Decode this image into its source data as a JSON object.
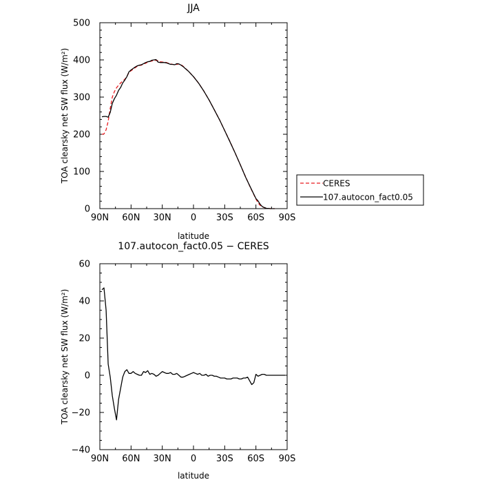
{
  "chart_data": [
    {
      "type": "line",
      "title": "JJA",
      "xlabel": "latitude",
      "ylabel": "TOA clearsky net SW flux (W/m²)",
      "xlim": [
        90,
        -90
      ],
      "ylim": [
        0,
        500
      ],
      "xticks": [
        90,
        60,
        30,
        0,
        -30,
        -60,
        -90
      ],
      "xtick_labels": [
        "90N",
        "60N",
        "30N",
        "0",
        "30S",
        "60S",
        "90S"
      ],
      "yticks": [
        0,
        100,
        200,
        300,
        400,
        500
      ],
      "ytick_labels": [
        "0",
        "100",
        "200",
        "300",
        "400",
        "500"
      ],
      "legend_position": "right",
      "series": [
        {
          "name": "CERES",
          "color": "#e8191d",
          "style": "dashed",
          "x": [
            88,
            86,
            84,
            82,
            80,
            78,
            76,
            74,
            72,
            70,
            68,
            66,
            64,
            62,
            60,
            58,
            56,
            54,
            52,
            50,
            48,
            46,
            44,
            42,
            40,
            38,
            36,
            34,
            32,
            30,
            28,
            26,
            24,
            22,
            20,
            18,
            16,
            14,
            12,
            10,
            8,
            5,
            0,
            -5,
            -10,
            -15,
            -20,
            -25,
            -30,
            -35,
            -40,
            -45,
            -50,
            -55,
            -60,
            -62,
            -64,
            -66,
            -68,
            -70,
            -72,
            -74,
            -76,
            -78
          ],
          "y": [
            200,
            201,
            212,
            235,
            270,
            300,
            315,
            325,
            332,
            338,
            343,
            348,
            356,
            366,
            371,
            375,
            379,
            383,
            385,
            386,
            389,
            391,
            394,
            396,
            397,
            398,
            399,
            398,
            395,
            394,
            394,
            393,
            391,
            389,
            388,
            387,
            388,
            389,
            387,
            383,
            378,
            370,
            355,
            337,
            316,
            292,
            266,
            239,
            210,
            181,
            150,
            118,
            86,
            55,
            26,
            16,
            9,
            5,
            3,
            1,
            0.5,
            0,
            0,
            0
          ]
        },
        {
          "name": "107.autocon_fact0.05",
          "color": "#000000",
          "style": "solid",
          "x": [
            88,
            86,
            84,
            82,
            80,
            78,
            76,
            74,
            72,
            70,
            68,
            66,
            64,
            62,
            60,
            58,
            56,
            54,
            52,
            50,
            48,
            46,
            44,
            42,
            40,
            38,
            36,
            34,
            32,
            30,
            28,
            26,
            24,
            22,
            20,
            18,
            16,
            14,
            12,
            10,
            8,
            5,
            0,
            -5,
            -10,
            -15,
            -20,
            -25,
            -30,
            -35,
            -40,
            -45,
            -50,
            -55,
            -60,
            -62,
            -64,
            -66,
            -68,
            -70,
            -72,
            -74,
            -76,
            -78
          ],
          "y": [
            247,
            248,
            248,
            246,
            259,
            283,
            296,
            305,
            318,
            326,
            338,
            346,
            355,
            368,
            373,
            377,
            381,
            384,
            386,
            387,
            390,
            393,
            395,
            396,
            399,
            400,
            401,
            394,
            393,
            393,
            393,
            392,
            390,
            388,
            388,
            387,
            390,
            389,
            386,
            382,
            377,
            370,
            355,
            337,
            316,
            292,
            266,
            239,
            210,
            180,
            150,
            118,
            85,
            56,
            27,
            21,
            12,
            6,
            3,
            1,
            0.5,
            0,
            0,
            0
          ]
        }
      ]
    },
    {
      "type": "line",
      "title": "107.autocon_fact0.05 − CERES",
      "xlabel": "latitude",
      "ylabel": "TOA clearsky net SW flux (W/m²)",
      "xlim": [
        90,
        -90
      ],
      "ylim": [
        -40,
        60
      ],
      "xticks": [
        90,
        60,
        30,
        0,
        -30,
        -60,
        -90
      ],
      "xtick_labels": [
        "90N",
        "60N",
        "30N",
        "0",
        "30S",
        "60S",
        "90S"
      ],
      "yticks": [
        -40,
        -20,
        0,
        20,
        40,
        60
      ],
      "ytick_labels": [
        "−40",
        "−20",
        "0",
        "20",
        "40",
        "60"
      ],
      "series": [
        {
          "color": "#000000",
          "style": "solid",
          "x": [
            88,
            86,
            84,
            82,
            80,
            78,
            76,
            74,
            72,
            70,
            68,
            66,
            64,
            62,
            60,
            58,
            56,
            54,
            52,
            50,
            48,
            46,
            44,
            42,
            40,
            38,
            36,
            34,
            32,
            30,
            28,
            26,
            24,
            22,
            20,
            18,
            16,
            14,
            12,
            10,
            8,
            6,
            4,
            2,
            0,
            -2,
            -4,
            -6,
            -8,
            -10,
            -12,
            -14,
            -16,
            -18,
            -20,
            -22,
            -24,
            -26,
            -28,
            -30,
            -32,
            -34,
            -36,
            -38,
            -40,
            -42,
            -44,
            -46,
            -48,
            -50,
            -52,
            -54,
            -56,
            -58,
            -60,
            -62,
            -64,
            -66,
            -68,
            -70,
            -72,
            -74,
            -76,
            -78,
            -80,
            -82,
            -84,
            -86,
            -88
          ],
          "y": [
            46,
            47,
            35,
            6,
            -1,
            -11,
            -18,
            -24,
            -13,
            -7,
            -1,
            2,
            3,
            1,
            1,
            2,
            1,
            0.5,
            0,
            0,
            2,
            1.5,
            2.5,
            0.5,
            1,
            0.5,
            -0.5,
            0,
            1,
            2,
            1.5,
            1,
            1,
            1.5,
            0.5,
            0.5,
            1,
            0,
            -1,
            -1,
            -0.5,
            0,
            0.5,
            1,
            1.5,
            1,
            0.5,
            1,
            0,
            0,
            0.5,
            -0.5,
            0,
            0,
            -0.5,
            -0.5,
            -1,
            -1.5,
            -1.5,
            -1.5,
            -2,
            -2,
            -2,
            -1.5,
            -1.5,
            -1.5,
            -2,
            -2,
            -1.5,
            -1.5,
            -1,
            -3,
            -5,
            -4,
            0.5,
            -0.5,
            0,
            0.5,
            0.5,
            0,
            0,
            0,
            0,
            0,
            0,
            0,
            0,
            0,
            0
          ]
        }
      ]
    }
  ]
}
